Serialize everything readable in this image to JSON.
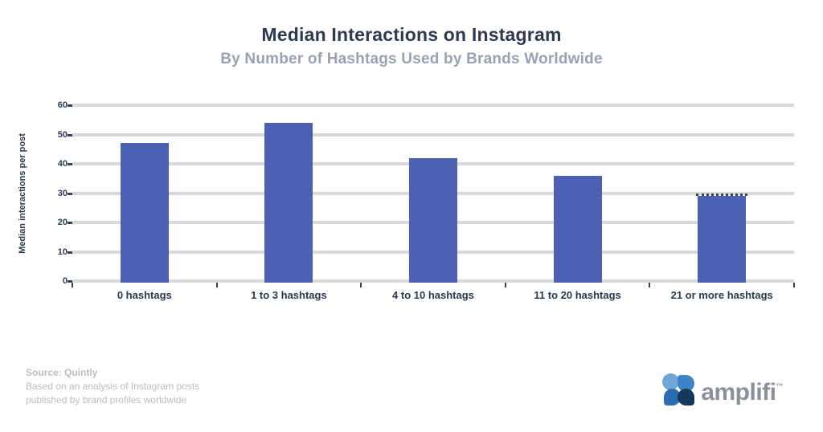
{
  "chart_data": {
    "type": "bar",
    "title": "Median Interactions on Instagram",
    "subtitle": "By Number of Hashtags Used by Brands Worldwide",
    "ylabel": "Median interactions per post",
    "xlabel": "",
    "categories": [
      "0 hashtags",
      "1 to 3 hashtags",
      "4 to 10 hashtags",
      "11 to 20 hashtags",
      "21 or more hashtags"
    ],
    "values": [
      47,
      54,
      42,
      36,
      29
    ],
    "ylim": [
      0,
      60
    ],
    "ytick_step": 10,
    "grid": true,
    "legend": "none",
    "bar_color": "#4c60b4",
    "last_bar_dotted_top": true
  },
  "footer": {
    "line1": "Source: Quintly",
    "line2": "Based on an analysis of Instagram posts",
    "line3": "published by brand profiles worldwide"
  },
  "logo": {
    "wordmark": "amplifi",
    "trademark": "™",
    "petal_colors": [
      "#6fa8d8",
      "#3d83c6",
      "#2e6cb0",
      "#14395c"
    ]
  }
}
